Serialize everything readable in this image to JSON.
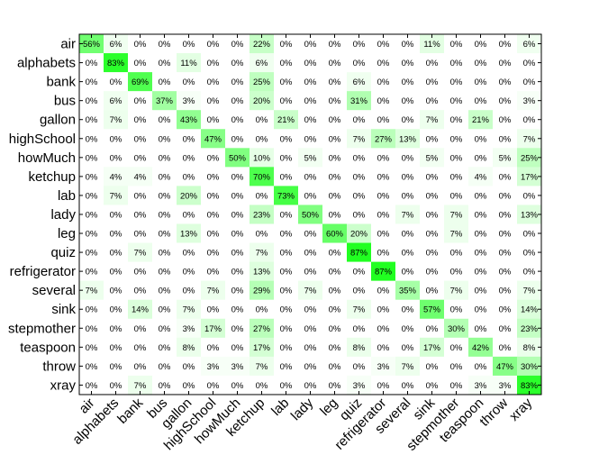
{
  "chart_data": {
    "type": "heatmap",
    "rows": [
      "air",
      "alphabets",
      "bank",
      "bus",
      "gallon",
      "highSchool",
      "howMuch",
      "ketchup",
      "lab",
      "lady",
      "leg",
      "quiz",
      "refrigerator",
      "several",
      "sink",
      "stepmother",
      "teaspoon",
      "throw",
      "xray"
    ],
    "columns": [
      "air",
      "alphabets",
      "bank",
      "bus",
      "gallon",
      "highSchool",
      "howMuch",
      "ketchup",
      "lab",
      "lady",
      "leg",
      "quiz",
      "refrigerator",
      "several",
      "sink",
      "stepmother",
      "teaspoon",
      "throw",
      "xray"
    ],
    "values": [
      [
        56,
        6,
        0,
        0,
        0,
        0,
        0,
        22,
        0,
        0,
        0,
        0,
        0,
        0,
        11,
        0,
        0,
        0,
        6
      ],
      [
        0,
        83,
        0,
        0,
        11,
        0,
        0,
        6,
        0,
        0,
        0,
        0,
        0,
        0,
        0,
        0,
        0,
        0,
        0
      ],
      [
        0,
        0,
        69,
        0,
        0,
        0,
        0,
        25,
        0,
        0,
        0,
        6,
        0,
        0,
        0,
        0,
        0,
        0,
        0
      ],
      [
        0,
        6,
        0,
        37,
        3,
        0,
        0,
        20,
        0,
        0,
        0,
        31,
        0,
        0,
        0,
        0,
        0,
        0,
        3
      ],
      [
        0,
        7,
        0,
        0,
        43,
        0,
        0,
        0,
        21,
        0,
        0,
        0,
        0,
        0,
        7,
        0,
        21,
        0,
        0
      ],
      [
        0,
        0,
        0,
        0,
        0,
        47,
        0,
        0,
        0,
        0,
        0,
        7,
        27,
        13,
        0,
        0,
        0,
        0,
        7
      ],
      [
        0,
        0,
        0,
        0,
        0,
        0,
        50,
        10,
        0,
        5,
        0,
        0,
        0,
        0,
        5,
        0,
        0,
        5,
        25
      ],
      [
        0,
        4,
        4,
        0,
        0,
        0,
        0,
        70,
        0,
        0,
        0,
        0,
        0,
        0,
        0,
        0,
        4,
        0,
        17
      ],
      [
        0,
        7,
        0,
        0,
        20,
        0,
        0,
        0,
        73,
        0,
        0,
        0,
        0,
        0,
        0,
        0,
        0,
        0,
        0
      ],
      [
        0,
        0,
        0,
        0,
        0,
        0,
        0,
        23,
        0,
        50,
        0,
        0,
        0,
        7,
        0,
        7,
        0,
        0,
        13
      ],
      [
        0,
        0,
        0,
        0,
        13,
        0,
        0,
        0,
        0,
        0,
        60,
        20,
        0,
        0,
        0,
        7,
        0,
        0,
        0
      ],
      [
        0,
        0,
        7,
        0,
        0,
        0,
        0,
        7,
        0,
        0,
        0,
        87,
        0,
        0,
        0,
        0,
        0,
        0,
        0
      ],
      [
        0,
        0,
        0,
        0,
        0,
        0,
        0,
        13,
        0,
        0,
        0,
        0,
        87,
        0,
        0,
        0,
        0,
        0,
        0
      ],
      [
        7,
        0,
        0,
        0,
        0,
        7,
        0,
        29,
        0,
        7,
        0,
        0,
        0,
        35,
        0,
        7,
        0,
        0,
        7
      ],
      [
        0,
        0,
        14,
        0,
        7,
        0,
        0,
        0,
        0,
        0,
        0,
        7,
        0,
        0,
        57,
        0,
        0,
        0,
        14
      ],
      [
        0,
        0,
        0,
        0,
        3,
        17,
        0,
        27,
        0,
        0,
        0,
        0,
        0,
        0,
        0,
        30,
        0,
        0,
        23
      ],
      [
        0,
        0,
        0,
        0,
        8,
        0,
        0,
        17,
        0,
        0,
        0,
        8,
        0,
        0,
        17,
        0,
        42,
        0,
        8
      ],
      [
        0,
        0,
        0,
        0,
        0,
        3,
        3,
        7,
        0,
        0,
        0,
        0,
        3,
        7,
        0,
        0,
        0,
        47,
        30
      ],
      [
        0,
        0,
        7,
        0,
        0,
        0,
        0,
        0,
        0,
        0,
        0,
        3,
        0,
        0,
        0,
        0,
        3,
        3,
        83
      ]
    ],
    "value_suffix": "%",
    "color_low": "#ffffff",
    "color_high": "#00ff00",
    "value_max": 100,
    "title": "",
    "xlabel": "",
    "ylabel": ""
  }
}
